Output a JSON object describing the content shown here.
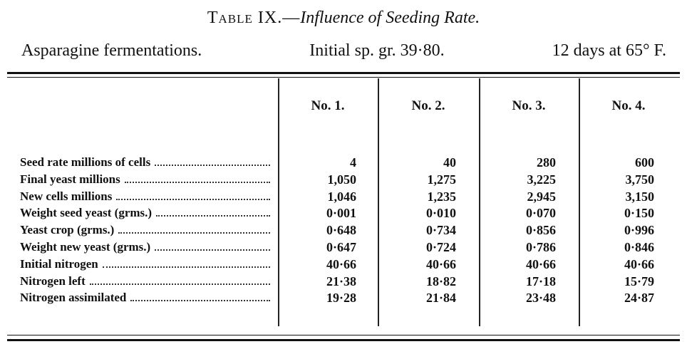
{
  "header": {
    "title_label": "Table IX.—",
    "title_text": "Influence of Seeding Rate.",
    "subtitle": [
      "Asparagine fermentations.",
      "Initial sp. gr. 39·80.",
      "12 days at 65° F."
    ]
  },
  "table": {
    "columns": [
      "No. 1.",
      "No. 2.",
      "No. 3.",
      "No. 4."
    ],
    "rows": [
      {
        "label": "Seed rate millions of cells",
        "values": [
          "4",
          "40",
          "280",
          "600"
        ]
      },
      {
        "label": "Final yeast millions",
        "values": [
          "1,050",
          "1,275",
          "3,225",
          "3,750"
        ]
      },
      {
        "label": "New cells millions",
        "values": [
          "1,046",
          "1,235",
          "2,945",
          "3,150"
        ]
      },
      {
        "label": "Weight seed yeast (grms.)",
        "values": [
          "0·001",
          "0·010",
          "0·070",
          "0·150"
        ]
      },
      {
        "label": "Yeast crop (grms.)",
        "values": [
          "0·648",
          "0·734",
          "0·856",
          "0·996"
        ]
      },
      {
        "label": "Weight new yeast (grms.)",
        "values": [
          "0·647",
          "0·724",
          "0·786",
          "0·846"
        ]
      },
      {
        "label": "Initial nitrogen",
        "values": [
          "40·66",
          "40·66",
          "40·66",
          "40·66"
        ]
      },
      {
        "label": "Nitrogen left",
        "values": [
          "21·38",
          "18·82",
          "17·18",
          "15·79"
        ]
      },
      {
        "label": "Nitrogen assimilated",
        "values": [
          "19·28",
          "21·84",
          "23·48",
          "24·87"
        ]
      }
    ]
  }
}
